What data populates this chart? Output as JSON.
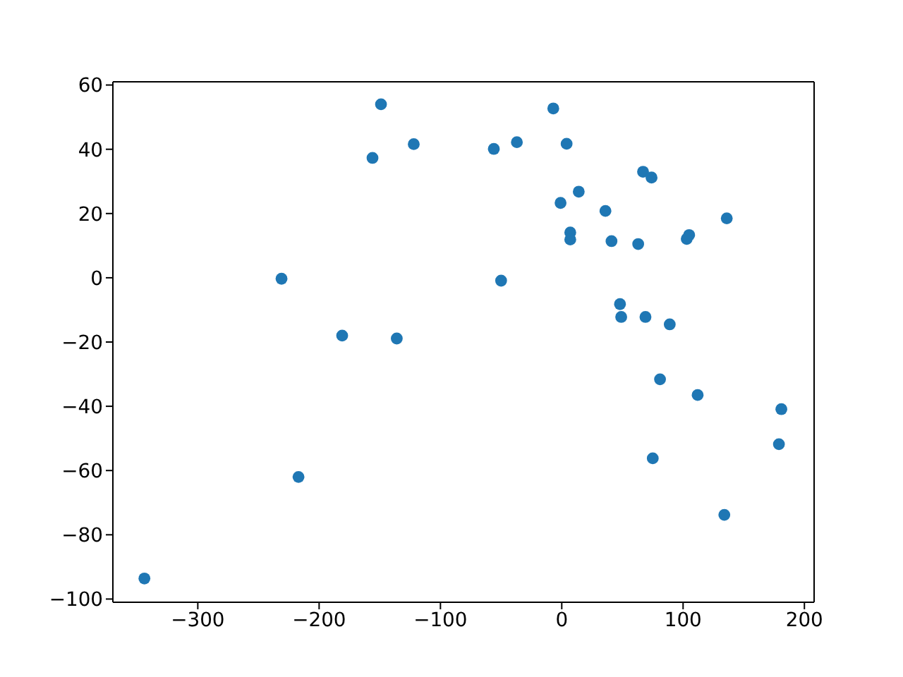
{
  "chart_data": {
    "type": "scatter",
    "x": [
      -344,
      -231,
      -217,
      -181,
      -136,
      -149,
      -156,
      -122,
      -56,
      -50,
      -37,
      -7,
      4,
      67,
      74,
      14,
      -1,
      36,
      7,
      7,
      41,
      63,
      105,
      103,
      136,
      48,
      49,
      69,
      89,
      81,
      112,
      181,
      179,
      75,
      134
    ],
    "values": [
      -93.6,
      -0.3,
      -62.0,
      -18.0,
      -18.9,
      54.0,
      37.3,
      41.6,
      40.1,
      -0.9,
      42.2,
      52.7,
      41.7,
      33.0,
      31.2,
      26.8,
      23.3,
      20.8,
      14.1,
      11.9,
      11.4,
      10.5,
      13.3,
      12.1,
      18.5,
      -8.2,
      -12.2,
      -12.2,
      -14.5,
      -31.6,
      -36.5,
      -40.9,
      -51.8,
      -56.2,
      -73.8
    ],
    "color": "#1f77b4",
    "marker": "circle",
    "xlim": [
      -370,
      208
    ],
    "ylim": [
      -101,
      61
    ],
    "xticks": [
      {
        "value": -300,
        "label": "−300"
      },
      {
        "value": -200,
        "label": "−200"
      },
      {
        "value": -100,
        "label": "−100"
      },
      0,
      100,
      200
    ],
    "yticks": [
      {
        "value": -100,
        "label": "−100"
      },
      {
        "value": -80,
        "label": "−80"
      },
      {
        "value": -60,
        "label": "−60"
      },
      {
        "value": -40,
        "label": "−40"
      },
      {
        "value": -20,
        "label": "−20"
      },
      0,
      20,
      40,
      60
    ]
  }
}
